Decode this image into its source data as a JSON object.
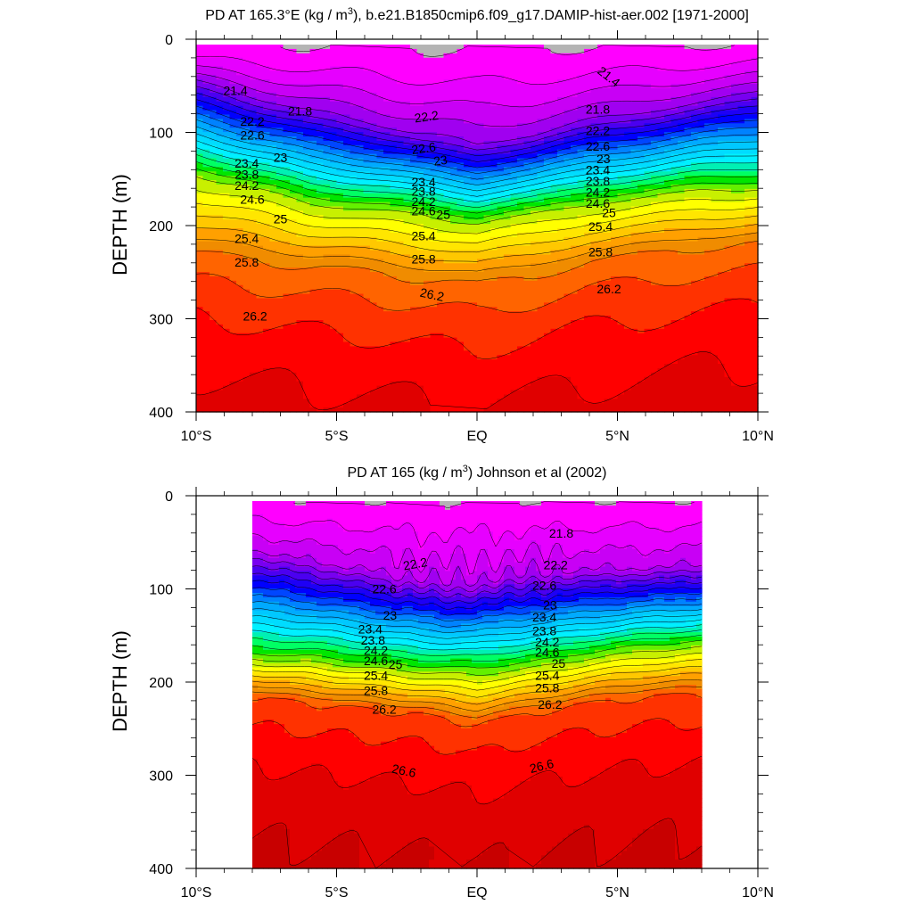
{
  "chart_data": [
    {
      "type": "contour",
      "title_main": "PD AT 165.3°E (kg / m",
      "title_sup": "3",
      "title_rest": "), b.e21.B1850cmip6.f09_g17.DAMIP-hist-aer.002 [1971-2000]",
      "ylabel": "DEPTH (m)",
      "xlim": [
        -10,
        10
      ],
      "ylim": [
        0,
        400
      ],
      "data_x_range": [
        -10,
        10
      ],
      "x_ticks": [
        {
          "value": -10,
          "label": "10°S"
        },
        {
          "value": -5,
          "label": "5°S"
        },
        {
          "value": 0,
          "label": "EQ"
        },
        {
          "value": 5,
          "label": "5°N"
        },
        {
          "value": 10,
          "label": "10°N"
        }
      ],
      "y_ticks": [
        {
          "value": 0,
          "label": "0"
        },
        {
          "value": 100,
          "label": "100"
        },
        {
          "value": 200,
          "label": "200"
        },
        {
          "value": 300,
          "label": "300"
        },
        {
          "value": 400,
          "label": "400"
        }
      ],
      "levels": [
        21.0,
        21.2,
        21.4,
        21.6,
        21.8,
        22.0,
        22.2,
        22.4,
        22.6,
        22.8,
        23.0,
        23.2,
        23.4,
        23.6,
        23.8,
        24.0,
        24.2,
        24.4,
        24.6,
        24.8,
        25.0,
        25.2,
        25.4,
        25.6,
        25.8,
        26.0,
        26.2,
        26.4,
        26.6
      ],
      "contour_labels": [
        {
          "text": "21.4",
          "x": -8.6,
          "y": 55,
          "rot": 0
        },
        {
          "text": "21.4",
          "x": 4.7,
          "y": 40,
          "rot": 38
        },
        {
          "text": "21.8",
          "x": -6.3,
          "y": 77,
          "rot": 0
        },
        {
          "text": "21.8",
          "x": 4.3,
          "y": 75,
          "rot": 0
        },
        {
          "text": "22.2",
          "x": -8.0,
          "y": 88,
          "rot": 0
        },
        {
          "text": "22.2",
          "x": -1.8,
          "y": 83,
          "rot": -8
        },
        {
          "text": "22.2",
          "x": 4.3,
          "y": 98,
          "rot": 0
        },
        {
          "text": "22.6",
          "x": -8.0,
          "y": 103,
          "rot": 0
        },
        {
          "text": "22.6",
          "x": -1.9,
          "y": 117,
          "rot": -8
        },
        {
          "text": "22.6",
          "x": 4.3,
          "y": 115,
          "rot": 0
        },
        {
          "text": "23",
          "x": -7.0,
          "y": 127,
          "rot": 0
        },
        {
          "text": "23",
          "x": -1.3,
          "y": 130,
          "rot": -8
        },
        {
          "text": "23",
          "x": 4.5,
          "y": 128,
          "rot": 0
        },
        {
          "text": "23.4",
          "x": -8.2,
          "y": 133,
          "rot": 0
        },
        {
          "text": "23.4",
          "x": -1.9,
          "y": 153,
          "rot": 0
        },
        {
          "text": "23.4",
          "x": 4.3,
          "y": 140,
          "rot": 0
        },
        {
          "text": "23.8",
          "x": -8.2,
          "y": 145,
          "rot": 0
        },
        {
          "text": "23.8",
          "x": -1.9,
          "y": 163,
          "rot": 0
        },
        {
          "text": "23.8",
          "x": 4.3,
          "y": 152,
          "rot": 0
        },
        {
          "text": "24.2",
          "x": -8.2,
          "y": 157,
          "rot": 0
        },
        {
          "text": "24.2",
          "x": -1.9,
          "y": 174,
          "rot": 0
        },
        {
          "text": "24.2",
          "x": 4.3,
          "y": 164,
          "rot": 0
        },
        {
          "text": "24.6",
          "x": -8.0,
          "y": 172,
          "rot": 0
        },
        {
          "text": "24.6",
          "x": -1.9,
          "y": 184,
          "rot": 0
        },
        {
          "text": "24.6",
          "x": 4.3,
          "y": 176,
          "rot": 0
        },
        {
          "text": "25",
          "x": -7.0,
          "y": 193,
          "rot": 0
        },
        {
          "text": "25",
          "x": -1.2,
          "y": 188,
          "rot": 0
        },
        {
          "text": "25",
          "x": 4.7,
          "y": 186,
          "rot": 0
        },
        {
          "text": "25.4",
          "x": -8.2,
          "y": 214,
          "rot": 0
        },
        {
          "text": "25.4",
          "x": -1.9,
          "y": 211,
          "rot": 0
        },
        {
          "text": "25.4",
          "x": 4.4,
          "y": 201,
          "rot": 0
        },
        {
          "text": "25.8",
          "x": -8.2,
          "y": 239,
          "rot": 0
        },
        {
          "text": "25.8",
          "x": -1.9,
          "y": 236,
          "rot": 0
        },
        {
          "text": "25.8",
          "x": 4.4,
          "y": 228,
          "rot": 0
        },
        {
          "text": "26.2",
          "x": -1.6,
          "y": 274,
          "rot": 12
        },
        {
          "text": "26.2",
          "x": 4.7,
          "y": 268,
          "rot": 0
        },
        {
          "text": "26.2",
          "x": -7.9,
          "y": 297,
          "rot": 0
        }
      ]
    },
    {
      "type": "contour",
      "title_main": "PD AT 165 (kg / m",
      "title_sup": "3",
      "title_rest": ") Johnson et al (2002)",
      "ylabel": "DEPTH (m)",
      "xlim": [
        -10,
        10
      ],
      "ylim": [
        0,
        400
      ],
      "data_x_range": [
        -8,
        8
      ],
      "x_ticks": [
        {
          "value": -10,
          "label": "10°S"
        },
        {
          "value": -5,
          "label": "5°S"
        },
        {
          "value": 0,
          "label": "EQ"
        },
        {
          "value": 5,
          "label": "5°N"
        },
        {
          "value": 10,
          "label": "10°N"
        }
      ],
      "y_ticks": [
        {
          "value": 0,
          "label": "0"
        },
        {
          "value": 100,
          "label": "100"
        },
        {
          "value": 200,
          "label": "200"
        },
        {
          "value": 300,
          "label": "300"
        },
        {
          "value": 400,
          "label": "400"
        }
      ],
      "levels": [
        21.2,
        21.4,
        21.6,
        21.8,
        22.0,
        22.2,
        22.4,
        22.6,
        22.8,
        23.0,
        23.2,
        23.4,
        23.6,
        23.8,
        24.0,
        24.2,
        24.4,
        24.6,
        24.8,
        25.0,
        25.2,
        25.4,
        25.6,
        25.8,
        26.0,
        26.2,
        26.4,
        26.6,
        26.8
      ],
      "contour_labels": [
        {
          "text": "21.8",
          "x": 3.0,
          "y": 40,
          "rot": 0
        },
        {
          "text": "22.2",
          "x": -2.2,
          "y": 73,
          "rot": -10
        },
        {
          "text": "22.2",
          "x": 2.8,
          "y": 74,
          "rot": 0
        },
        {
          "text": "22.6",
          "x": -3.3,
          "y": 100,
          "rot": 0
        },
        {
          "text": "22.6",
          "x": 2.4,
          "y": 96,
          "rot": 0
        },
        {
          "text": "23",
          "x": -3.1,
          "y": 128,
          "rot": 0
        },
        {
          "text": "23",
          "x": 2.6,
          "y": 117,
          "rot": 0
        },
        {
          "text": "23.4",
          "x": -3.8,
          "y": 143,
          "rot": 0
        },
        {
          "text": "23.4",
          "x": 2.4,
          "y": 130,
          "rot": 0
        },
        {
          "text": "23.8",
          "x": -3.7,
          "y": 155,
          "rot": 0
        },
        {
          "text": "23.8",
          "x": 2.4,
          "y": 145,
          "rot": 0
        },
        {
          "text": "24.2",
          "x": -3.6,
          "y": 166,
          "rot": 0
        },
        {
          "text": "24.2",
          "x": 2.5,
          "y": 157,
          "rot": 0
        },
        {
          "text": "24.6",
          "x": -3.6,
          "y": 177,
          "rot": 0
        },
        {
          "text": "24.6",
          "x": 2.5,
          "y": 168,
          "rot": 0
        },
        {
          "text": "25",
          "x": -2.9,
          "y": 181,
          "rot": 0
        },
        {
          "text": "25",
          "x": 2.9,
          "y": 180,
          "rot": 0
        },
        {
          "text": "25.4",
          "x": -3.6,
          "y": 193,
          "rot": 0
        },
        {
          "text": "25.4",
          "x": 2.5,
          "y": 193,
          "rot": 0
        },
        {
          "text": "25.8",
          "x": -3.6,
          "y": 209,
          "rot": 0
        },
        {
          "text": "25.8",
          "x": 2.5,
          "y": 206,
          "rot": 0
        },
        {
          "text": "26.2",
          "x": -3.3,
          "y": 229,
          "rot": 0
        },
        {
          "text": "26.2",
          "x": 2.6,
          "y": 224,
          "rot": 0
        },
        {
          "text": "26.6",
          "x": -2.6,
          "y": 295,
          "rot": 12
        },
        {
          "text": "26.6",
          "x": 2.3,
          "y": 290,
          "rot": -14
        }
      ]
    }
  ]
}
